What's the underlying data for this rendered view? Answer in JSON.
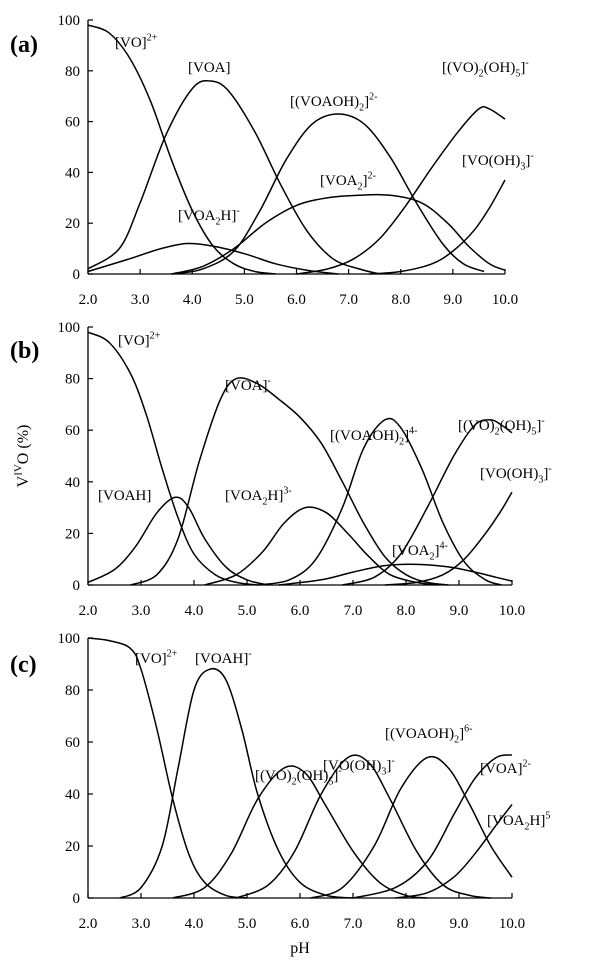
{
  "ylabel": "V<sup>IV</sup>O (%)",
  "xlabel": "pH",
  "chart_data": [
    {
      "type": "line",
      "panel_label": "(a)",
      "xlim": [
        2.0,
        10.0
      ],
      "ylim": [
        0,
        100
      ],
      "xticks": [
        "2.0",
        "3.0",
        "4.0",
        "5.0",
        "6.0",
        "7.0",
        "8.0",
        "9.0",
        "10.0"
      ],
      "yticks": [
        "0",
        "20",
        "40",
        "60",
        "80",
        "100"
      ],
      "series": [
        {
          "name": "[VO]<sup>2+</sup>",
          "points": [
            [
              2.0,
              98
            ],
            [
              2.4,
              95
            ],
            [
              2.8,
              85
            ],
            [
              3.2,
              68
            ],
            [
              3.6,
              45
            ],
            [
              4.0,
              25
            ],
            [
              4.4,
              11
            ],
            [
              4.8,
              4
            ],
            [
              5.2,
              1
            ],
            [
              5.6,
              0
            ]
          ]
        },
        {
          "name": "[VOA]",
          "points": [
            [
              2.0,
              2
            ],
            [
              2.6,
              10
            ],
            [
              3.0,
              28
            ],
            [
              3.5,
              55
            ],
            [
              4.0,
              73
            ],
            [
              4.35,
              76
            ],
            [
              4.7,
              72
            ],
            [
              5.2,
              56
            ],
            [
              5.7,
              35
            ],
            [
              6.2,
              17
            ],
            [
              6.7,
              6
            ],
            [
              7.2,
              2
            ],
            [
              7.6,
              0
            ]
          ]
        },
        {
          "name": "[VOA<sub>2</sub>H]<sup>-</sup>",
          "points": [
            [
              2.0,
              1
            ],
            [
              2.8,
              6
            ],
            [
              3.4,
              10
            ],
            [
              3.9,
              12
            ],
            [
              4.4,
              11
            ],
            [
              5.0,
              8
            ],
            [
              5.6,
              4
            ],
            [
              6.2,
              1.5
            ],
            [
              6.8,
              0
            ]
          ]
        },
        {
          "name": "[(VOAOH)<sub>2</sub>]<sup>2-</sup>",
          "points": [
            [
              3.6,
              0
            ],
            [
              4.2,
              2
            ],
            [
              4.8,
              9
            ],
            [
              5.3,
              25
            ],
            [
              5.8,
              45
            ],
            [
              6.3,
              59
            ],
            [
              6.8,
              63
            ],
            [
              7.3,
              59
            ],
            [
              7.8,
              46
            ],
            [
              8.3,
              28
            ],
            [
              8.8,
              12
            ],
            [
              9.2,
              4
            ],
            [
              9.6,
              1
            ]
          ]
        },
        {
          "name": "[VOA<sub>2</sub>]<sup>2-</sup>",
          "points": [
            [
              3.6,
              0
            ],
            [
              4.2,
              3
            ],
            [
              4.8,
              10
            ],
            [
              5.4,
              20
            ],
            [
              6.0,
              27
            ],
            [
              6.6,
              30
            ],
            [
              7.2,
              31
            ],
            [
              7.8,
              31
            ],
            [
              8.4,
              28
            ],
            [
              8.9,
              20
            ],
            [
              9.3,
              11
            ],
            [
              9.7,
              4
            ],
            [
              10.0,
              1.5
            ]
          ]
        },
        {
          "name": "[(VO)<sub>2</sub>(OH)<sub>5</sub>]<sup>-</sup>",
          "points": [
            [
              6.0,
              0
            ],
            [
              6.6,
              2
            ],
            [
              7.1,
              6
            ],
            [
              7.6,
              14
            ],
            [
              8.1,
              27
            ],
            [
              8.6,
              42
            ],
            [
              9.1,
              56
            ],
            [
              9.5,
              65
            ],
            [
              9.7,
              65
            ],
            [
              10.0,
              61
            ]
          ]
        },
        {
          "name": "[VO(OH)<sub>3</sub>]<sup>-</sup>",
          "points": [
            [
              7.4,
              0
            ],
            [
              8.0,
              1
            ],
            [
              8.6,
              4
            ],
            [
              9.0,
              9
            ],
            [
              9.4,
              17
            ],
            [
              9.7,
              26
            ],
            [
              10.0,
              37
            ]
          ]
        }
      ],
      "labels": [
        "[VO]<sup>2+</sup>",
        "[VOA]",
        "[(VOAOH)<sub>2</sub>]<sup>2-</sup>",
        "[(VO)<sub>2</sub>(OH)<sub>5</sub>]<sup>-</sup>",
        "[VO(OH)<sub>3</sub>]<sup>-</sup>",
        "[VOA<sub>2</sub>]<sup>2-</sup>",
        "[VOA<sub>2</sub>H]<sup>-</sup>"
      ]
    },
    {
      "type": "line",
      "panel_label": "(b)",
      "xlim": [
        2.0,
        10.0
      ],
      "ylim": [
        0,
        100
      ],
      "xticks": [
        "2.0",
        "3.0",
        "4.0",
        "5.0",
        "6.0",
        "7.0",
        "8.0",
        "9.0",
        "10.0"
      ],
      "yticks": [
        "0",
        "20",
        "40",
        "60",
        "80",
        "100"
      ],
      "series": [
        {
          "name": "[VO]<sup>2+</sup>",
          "points": [
            [
              2.0,
              98
            ],
            [
              2.4,
              94
            ],
            [
              2.8,
              82
            ],
            [
              3.1,
              66
            ],
            [
              3.4,
              45
            ],
            [
              3.7,
              26
            ],
            [
              4.0,
              12
            ],
            [
              4.4,
              4
            ],
            [
              4.8,
              1
            ],
            [
              5.2,
              0
            ]
          ]
        },
        {
          "name": "[VOAH]",
          "points": [
            [
              2.0,
              1
            ],
            [
              2.5,
              6
            ],
            [
              2.9,
              15
            ],
            [
              3.3,
              28
            ],
            [
              3.65,
              34
            ],
            [
              3.9,
              30
            ],
            [
              4.2,
              18
            ],
            [
              4.6,
              7
            ],
            [
              5.0,
              2
            ],
            [
              5.4,
              0
            ]
          ]
        },
        {
          "name": "[VOA]<sup>-</sup>",
          "points": [
            [
              2.8,
              0
            ],
            [
              3.3,
              4
            ],
            [
              3.7,
              18
            ],
            [
              4.1,
              48
            ],
            [
              4.5,
              72
            ],
            [
              4.8,
              80
            ],
            [
              5.2,
              78
            ],
            [
              5.6,
              72
            ],
            [
              6.0,
              65
            ],
            [
              6.4,
              55
            ],
            [
              6.8,
              40
            ],
            [
              7.2,
              24
            ],
            [
              7.6,
              11
            ],
            [
              8.0,
              4
            ],
            [
              8.4,
              1
            ],
            [
              8.8,
              0
            ]
          ]
        },
        {
          "name": "[VOA<sub>2</sub>H]<sup>3-</sup>",
          "points": [
            [
              4.2,
              0
            ],
            [
              4.8,
              4
            ],
            [
              5.3,
              13
            ],
            [
              5.7,
              24
            ],
            [
              6.1,
              30
            ],
            [
              6.5,
              28
            ],
            [
              6.9,
              20
            ],
            [
              7.3,
              11
            ],
            [
              7.7,
              4
            ],
            [
              8.2,
              1
            ],
            [
              8.6,
              0
            ]
          ]
        },
        {
          "name": "[(VOAOH)<sub>2</sub>]<sup>4-</sup>",
          "points": [
            [
              5.2,
              0
            ],
            [
              5.8,
              2
            ],
            [
              6.3,
              10
            ],
            [
              6.8,
              30
            ],
            [
              7.2,
              53
            ],
            [
              7.6,
              64
            ],
            [
              7.9,
              61
            ],
            [
              8.3,
              45
            ],
            [
              8.7,
              24
            ],
            [
              9.1,
              9
            ],
            [
              9.5,
              2
            ],
            [
              9.8,
              0
            ]
          ]
        },
        {
          "name": "[VOA<sub>2</sub>]<sup>4-</sup>",
          "points": [
            [
              5.6,
              0
            ],
            [
              6.4,
              2
            ],
            [
              7.0,
              5
            ],
            [
              7.6,
              7.5
            ],
            [
              8.2,
              8
            ],
            [
              8.8,
              7
            ],
            [
              9.3,
              5
            ],
            [
              9.7,
              3
            ],
            [
              10.0,
              1.5
            ]
          ]
        },
        {
          "name": "[(VO)<sub>2</sub>(OH)<sub>5</sub>]<sup>-</sup>",
          "points": [
            [
              6.8,
              0
            ],
            [
              7.4,
              3
            ],
            [
              7.9,
              12
            ],
            [
              8.4,
              30
            ],
            [
              8.9,
              50
            ],
            [
              9.3,
              62
            ],
            [
              9.6,
              64
            ],
            [
              9.8,
              62
            ],
            [
              10.0,
              59
            ]
          ]
        },
        {
          "name": "[VO(OH)<sub>3</sub>]<sup>-</sup>",
          "points": [
            [
              7.6,
              0
            ],
            [
              8.2,
              1
            ],
            [
              8.7,
              4
            ],
            [
              9.1,
              10
            ],
            [
              9.5,
              20
            ],
            [
              9.8,
              29
            ],
            [
              10.0,
              36
            ]
          ]
        }
      ],
      "labels": [
        "[VO]<sup>2+</sup>",
        "[VOA]<sup>-</sup>",
        "[(VOAOH)<sub>2</sub>]<sup>4-</sup>",
        "[(VO)<sub>2</sub>(OH)<sub>5</sub>]<sup>-</sup>",
        "[VO(OH)<sub>3</sub>]<sup>-</sup>",
        "[VOAH]",
        "[VOA<sub>2</sub>H]<sup>3-</sup>",
        "[VOA<sub>2</sub>]<sup>4-</sup>"
      ]
    },
    {
      "type": "line",
      "panel_label": "(c)",
      "xlim": [
        2.0,
        10.0
      ],
      "ylim": [
        0,
        100
      ],
      "xticks": [
        "2.0",
        "3.0",
        "4.0",
        "5.0",
        "6.0",
        "7.0",
        "8.0",
        "9.0",
        "10.0"
      ],
      "yticks": [
        "0",
        "20",
        "40",
        "60",
        "80",
        "100"
      ],
      "series": [
        {
          "name": "[VO]<sup>2+</sup>",
          "points": [
            [
              2.0,
              100
            ],
            [
              2.4,
              99
            ],
            [
              2.8,
              96
            ],
            [
              3.0,
              88
            ],
            [
              3.3,
              65
            ],
            [
              3.6,
              38
            ],
            [
              3.9,
              17
            ],
            [
              4.2,
              6
            ],
            [
              4.6,
              1
            ],
            [
              5.0,
              0
            ]
          ]
        },
        {
          "name": "[VOAH]<sup>-</sup>",
          "points": [
            [
              2.6,
              0
            ],
            [
              3.0,
              4
            ],
            [
              3.4,
              20
            ],
            [
              3.7,
              50
            ],
            [
              4.0,
              80
            ],
            [
              4.3,
              88
            ],
            [
              4.6,
              84
            ],
            [
              4.9,
              65
            ],
            [
              5.2,
              40
            ],
            [
              5.6,
              18
            ],
            [
              6.0,
              6
            ],
            [
              6.5,
              1
            ],
            [
              7.0,
              0
            ]
          ]
        },
        {
          "name": "[VOA]<sup>2-</sup>",
          "points": [
            [
              3.6,
              0
            ],
            [
              4.2,
              4
            ],
            [
              4.7,
              17
            ],
            [
              5.2,
              38
            ],
            [
              5.7,
              50
            ],
            [
              6.1,
              48
            ],
            [
              6.5,
              35
            ],
            [
              7.0,
              18
            ],
            [
              7.5,
              6
            ],
            [
              8.0,
              1
            ],
            [
              8.4,
              0
            ]
          ]
        },
        {
          "name": "[VOA<sub>2</sub>H]<sup>5</sup>",
          "points": [
            [
              4.8,
              0
            ],
            [
              5.4,
              5
            ],
            [
              5.9,
              18
            ],
            [
              6.4,
              40
            ],
            [
              6.9,
              54
            ],
            [
              7.3,
              52
            ],
            [
              7.7,
              38
            ],
            [
              8.2,
              18
            ],
            [
              8.7,
              5
            ],
            [
              9.2,
              1
            ],
            [
              9.6,
              0
            ]
          ]
        },
        {
          "name": "[(VOAOH)<sub>2</sub>]<sup>6-</sup>",
          "points": [
            [
              6.2,
              0
            ],
            [
              6.8,
              4
            ],
            [
              7.4,
              20
            ],
            [
              7.9,
              42
            ],
            [
              8.4,
              54
            ],
            [
              8.8,
              50
            ],
            [
              9.2,
              36
            ],
            [
              9.6,
              20
            ],
            [
              10.0,
              8
            ]
          ]
        },
        {
          "name": "[(VO)<sub>2</sub>(OH)<sub>5</sub>]<sup>-</sup>",
          "points": [
            [
              7.0,
              0
            ],
            [
              7.8,
              4
            ],
            [
              8.4,
              14
            ],
            [
              8.9,
              32
            ],
            [
              9.3,
              46
            ],
            [
              9.7,
              54
            ],
            [
              10.0,
              55
            ]
          ]
        },
        {
          "name": "[VO(OH)<sub>3</sub>]<sup>-</sup>",
          "points": [
            [
              7.8,
              0
            ],
            [
              8.4,
              2
            ],
            [
              8.9,
              8
            ],
            [
              9.3,
              17
            ],
            [
              9.7,
              28
            ],
            [
              10.0,
              36
            ]
          ]
        }
      ],
      "labels": [
        "[VO]<sup>2+</sup>",
        "[VOAH]<sup>-</sup>",
        "[(VOAOH)<sub>2</sub>]<sup>6-</sup>",
        "[VOA]<sup>2-</sup>",
        "[VOA<sub>2</sub>H]<sup>5</sup>",
        "[(VO)<sub>2</sub>(OH)<sub>5</sub>]<sup>-</sup>",
        "[VO(OH)<sub>3</sub>]<sup>-</sup>"
      ]
    }
  ]
}
